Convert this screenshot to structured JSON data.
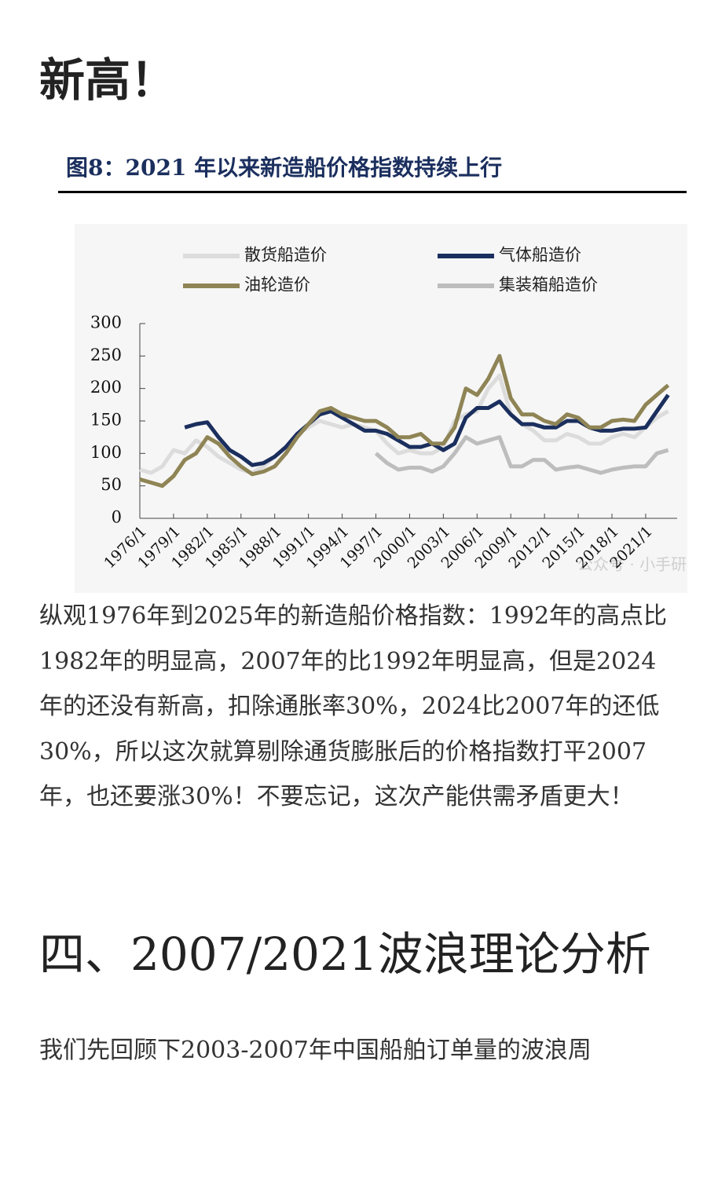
{
  "header": {
    "title": "新高！"
  },
  "figure": {
    "caption": "图8：2021 年以来新造船价格指数持续上行",
    "watermark": "公众号 · 小手研究"
  },
  "chart_data": {
    "type": "line",
    "x": [
      1976,
      1977,
      1978,
      1979,
      1980,
      1981,
      1982,
      1983,
      1984,
      1985,
      1986,
      1987,
      1988,
      1989,
      1990,
      1991,
      1992,
      1993,
      1994,
      1995,
      1996,
      1997,
      1998,
      1999,
      2000,
      2001,
      2002,
      2003,
      2004,
      2005,
      2006,
      2007,
      2008,
      2009,
      2010,
      2011,
      2012,
      2013,
      2014,
      2015,
      2016,
      2017,
      2018,
      2019,
      2020,
      2021,
      2022,
      2023
    ],
    "series": [
      {
        "name": "散货船造价",
        "color": "#dcdcdc",
        "values": [
          75,
          70,
          80,
          105,
          100,
          120,
          110,
          95,
          85,
          75,
          70,
          80,
          95,
          110,
          130,
          140,
          150,
          145,
          140,
          145,
          140,
          135,
          115,
          100,
          105,
          100,
          100,
          110,
          150,
          160,
          165,
          200,
          220,
          160,
          145,
          135,
          120,
          120,
          130,
          125,
          115,
          115,
          125,
          130,
          125,
          140,
          155,
          165
        ]
      },
      {
        "name": "气体船造价",
        "color": "#1b2f5e",
        "values": [
          null,
          null,
          null,
          null,
          140,
          145,
          148,
          125,
          105,
          95,
          82,
          85,
          95,
          110,
          130,
          145,
          160,
          165,
          155,
          145,
          135,
          135,
          130,
          120,
          110,
          110,
          115,
          105,
          115,
          155,
          170,
          170,
          180,
          160,
          145,
          145,
          140,
          140,
          150,
          150,
          140,
          135,
          135,
          138,
          138,
          140,
          165,
          190
        ]
      },
      {
        "name": "油轮造价",
        "color": "#8f8455",
        "values": [
          60,
          55,
          50,
          65,
          90,
          100,
          125,
          115,
          95,
          80,
          68,
          72,
          80,
          100,
          125,
          145,
          165,
          170,
          160,
          155,
          150,
          150,
          140,
          125,
          125,
          130,
          115,
          115,
          140,
          200,
          190,
          215,
          250,
          185,
          160,
          160,
          150,
          145,
          160,
          155,
          140,
          140,
          150,
          152,
          150,
          175,
          190,
          205
        ]
      },
      {
        "name": "集装箱船造价",
        "color": "#bdbdbd",
        "values": [
          null,
          null,
          null,
          null,
          null,
          null,
          null,
          null,
          null,
          null,
          null,
          null,
          null,
          null,
          null,
          null,
          null,
          null,
          null,
          null,
          null,
          100,
          85,
          75,
          78,
          78,
          72,
          80,
          100,
          125,
          115,
          120,
          125,
          80,
          80,
          90,
          90,
          75,
          78,
          80,
          75,
          70,
          75,
          78,
          80,
          80,
          100,
          105
        ]
      }
    ],
    "xlim": [
      1976,
      2023.8
    ],
    "xticks": [
      {
        "value": 1976,
        "label": "1976/1"
      },
      {
        "value": 1979,
        "label": "1979/1"
      },
      {
        "value": 1982,
        "label": "1982/1"
      },
      {
        "value": 1985,
        "label": "1985/1"
      },
      {
        "value": 1988,
        "label": "1988/1"
      },
      {
        "value": 1991,
        "label": "1991/1"
      },
      {
        "value": 1994,
        "label": "1994/1"
      },
      {
        "value": 1997,
        "label": "1997/1"
      },
      {
        "value": 2000,
        "label": "2000/1"
      },
      {
        "value": 2003,
        "label": "2003/1"
      },
      {
        "value": 2006,
        "label": "2006/1"
      },
      {
        "value": 2009,
        "label": "2009/1"
      },
      {
        "value": 2012,
        "label": "2012/1"
      },
      {
        "value": 2015,
        "label": "2015/1"
      },
      {
        "value": 2018,
        "label": "2018/1"
      },
      {
        "value": 2021,
        "label": "2021/1"
      }
    ],
    "ylim": [
      0,
      300
    ],
    "yticks": [
      0,
      50,
      100,
      150,
      200,
      250,
      300
    ]
  },
  "body": {
    "paragraph": "纵观1976年到2025年的新造船价格指数：1992年的高点比1982年的明显高，2007年的比1992年明显高，但是2024年的还没有新高，扣除通胀率30%，2024比2007年的还低30%，所以这次就算剔除通货膨胀后的价格指数打平2007年，也还要涨30%！不要忘记，这次产能供需矛盾更大！",
    "heading": "四、2007/2021波浪理论分析",
    "paragraph2": "我们先回顾下2003-2007年中国船舶订单量的波浪周"
  }
}
